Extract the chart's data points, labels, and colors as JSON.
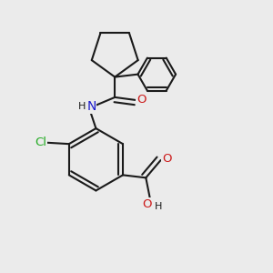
{
  "background_color": "#ebebeb",
  "bond_color": "#1a1a1a",
  "bond_width": 1.5,
  "atom_colors": {
    "N": "#1a1acc",
    "O": "#cc1a1a",
    "Cl": "#22aa22",
    "H": "#1a1a1a",
    "C": "#1a1a1a"
  },
  "font_size": 9.5,
  "fig_width": 3.0,
  "fig_height": 3.0,
  "dpi": 100
}
